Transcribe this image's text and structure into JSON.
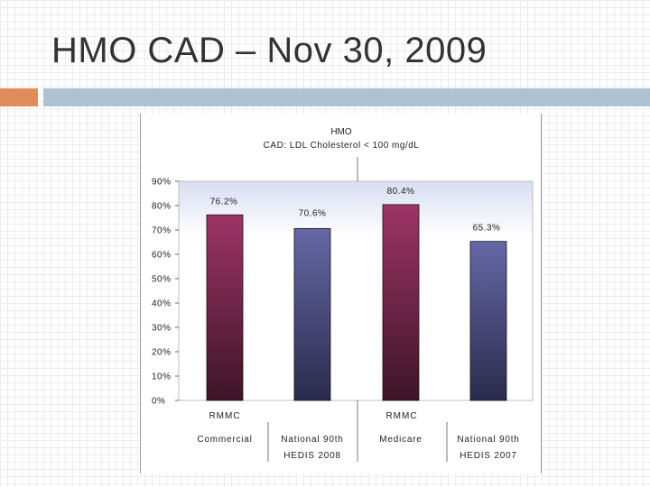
{
  "slide": {
    "title": "HMO CAD – Nov 30, 2009"
  },
  "colors": {
    "accent": "#e08c5a",
    "bar_strip": "#aec2d4",
    "rmmc_bar_top": "#9e3466",
    "rmmc_bar_bottom": "#3d1528",
    "national_bar_top": "#6668a6",
    "national_bar_bottom": "#2a2b4c"
  },
  "chart_data": {
    "type": "bar",
    "title_line1": "HMO",
    "title_line2": "CAD: LDL Cholesterol < 100 mg/dL",
    "ylim": [
      0,
      90
    ],
    "yticks": [
      {
        "value": 0,
        "label": "0%"
      },
      {
        "value": 10,
        "label": "10%"
      },
      {
        "value": 20,
        "label": "20%"
      },
      {
        "value": 30,
        "label": "30%"
      },
      {
        "value": 40,
        "label": "40%"
      },
      {
        "value": 50,
        "label": "50%"
      },
      {
        "value": 60,
        "label": "60%"
      },
      {
        "value": 70,
        "label": "70%"
      },
      {
        "value": 80,
        "label": "80%"
      },
      {
        "value": 90,
        "label": "90%"
      }
    ],
    "group_labels": [
      "RMMC",
      "RMMC"
    ],
    "bars": [
      {
        "category": [
          "Commercial"
        ],
        "value": 76.2,
        "label": "76.2%",
        "style": "rmmc"
      },
      {
        "category": [
          "National 90th",
          "HEDIS 2008"
        ],
        "value": 70.6,
        "label": "70.6%",
        "style": "national"
      },
      {
        "category": [
          "Medicare"
        ],
        "value": 80.4,
        "label": "80.4%",
        "style": "rmmc"
      },
      {
        "category": [
          "National 90th",
          "HEDIS 2007"
        ],
        "value": 65.3,
        "label": "65.3%",
        "style": "national"
      }
    ]
  }
}
